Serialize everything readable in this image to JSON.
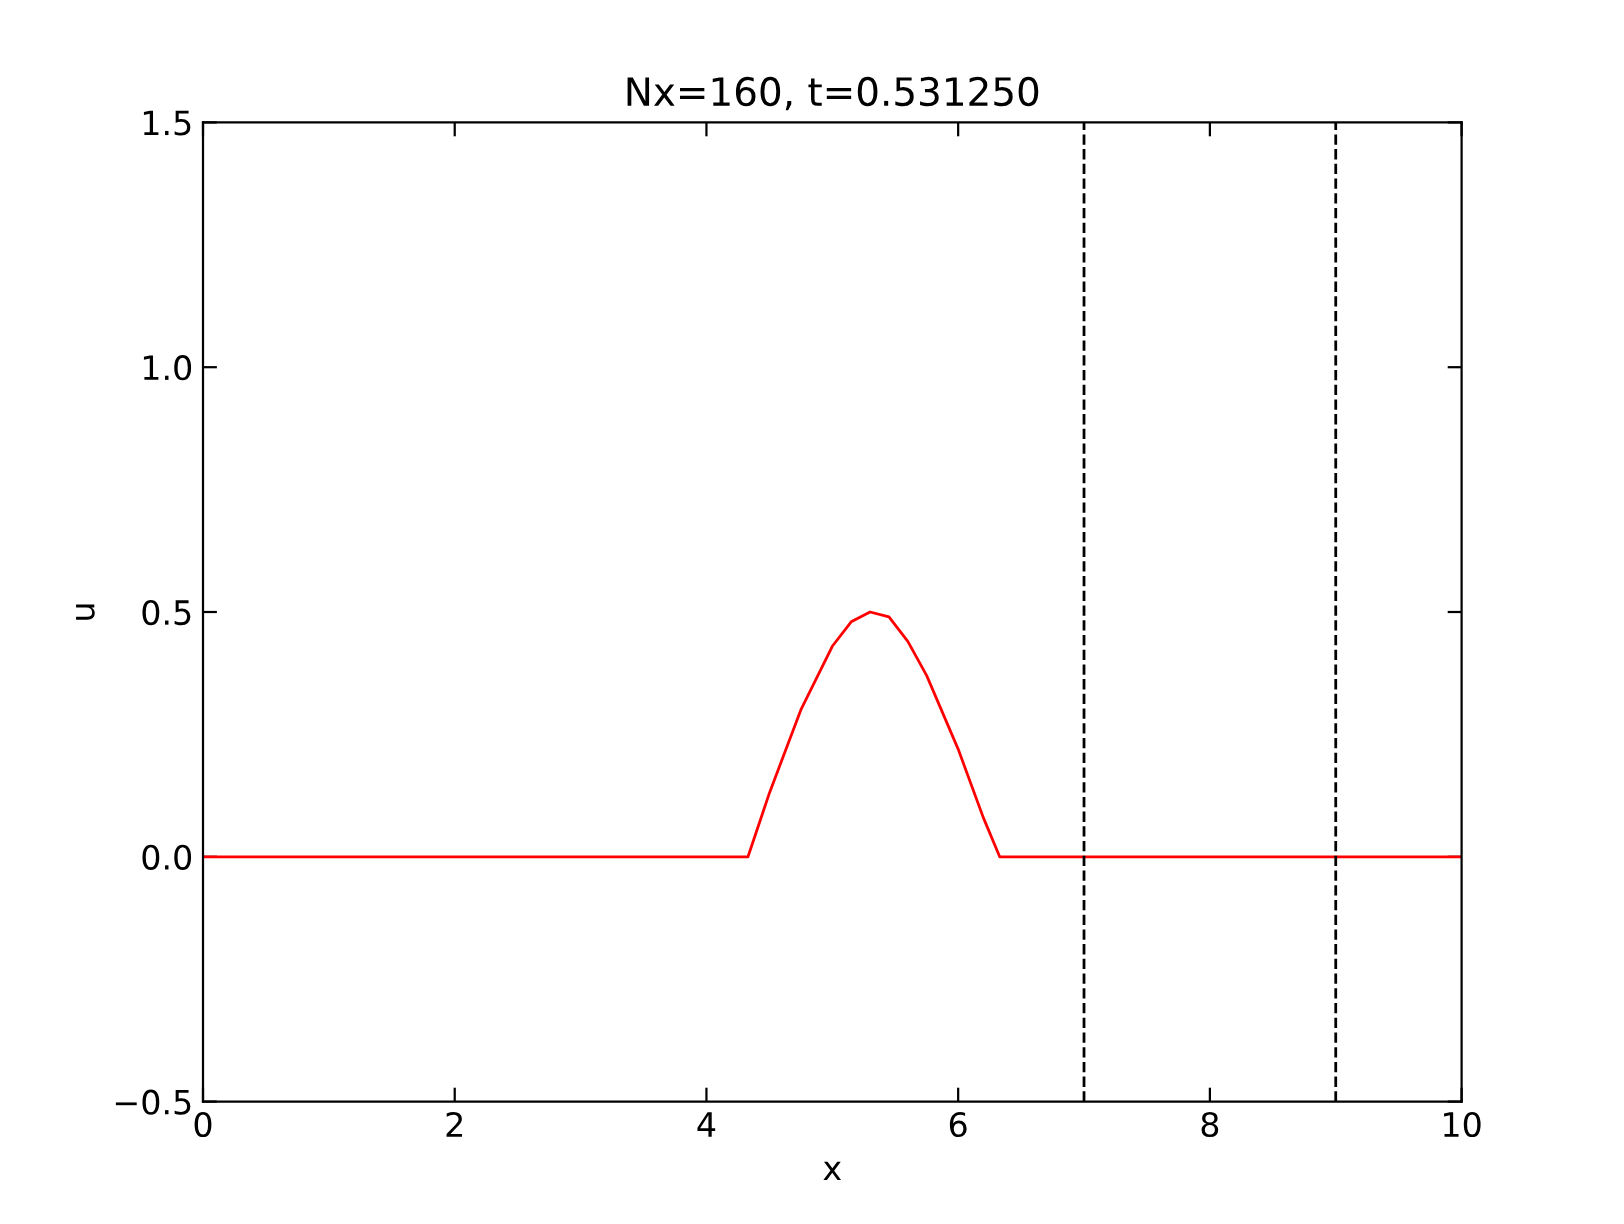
{
  "chart_data": {
    "type": "line",
    "title": "Nx=160, t=0.531250",
    "xlabel": "x",
    "ylabel": "u",
    "x": [
      0,
      4.33,
      4.5,
      4.75,
      5.0,
      5.15,
      5.3,
      5.45,
      5.6,
      5.75,
      6.0,
      6.2,
      6.33,
      10
    ],
    "series": [
      {
        "color": "#ff0000",
        "values": [
          0,
          0,
          0.13,
          0.3,
          0.43,
          0.48,
          0.5,
          0.49,
          0.44,
          0.37,
          0.22,
          0.08,
          0,
          0
        ]
      }
    ],
    "xlim": [
      0,
      10
    ],
    "ylim": [
      -0.5,
      1.5
    ],
    "xticks": [
      0,
      2,
      4,
      6,
      8,
      10
    ],
    "yticks": [
      -0.5,
      {
        "value": 0,
        "label": "0.0"
      },
      0.5,
      {
        "value": 1,
        "label": "1.0"
      },
      1.5
    ],
    "ref_lines": [
      {
        "axis": "x",
        "value": 7,
        "color": "#000000",
        "line_style": "dashed"
      },
      {
        "axis": "x",
        "value": 9,
        "color": "#000000",
        "line_style": "dashed"
      }
    ],
    "grid": false,
    "legend": false,
    "marker": "none",
    "line_style": "solid"
  }
}
